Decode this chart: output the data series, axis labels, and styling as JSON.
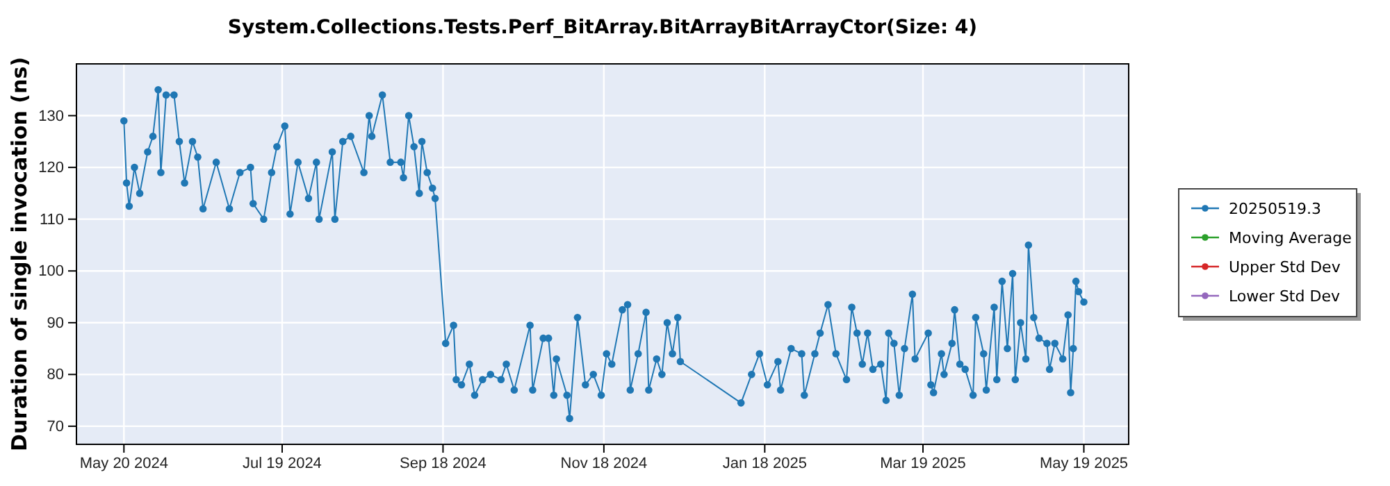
{
  "chart_data": {
    "type": "line",
    "title": "System.Collections.Tests.Perf_BitArray.BitArrayBitArrayCtor(Size: 4)",
    "ylabel": "Duration of single invocation (ns)",
    "xlim": [
      "2024-05-02",
      "2025-06-05"
    ],
    "xticks": [
      {
        "value": "2024-05-20",
        "label": "May 20 2024"
      },
      {
        "value": "2024-07-19",
        "label": "Jul 19 2024"
      },
      {
        "value": "2024-09-18",
        "label": "Sep 18 2024"
      },
      {
        "value": "2024-11-18",
        "label": "Nov 18 2024"
      },
      {
        "value": "2025-01-18",
        "label": "Jan 18 2025"
      },
      {
        "value": "2025-03-19",
        "label": "Mar 19 2025"
      },
      {
        "value": "2025-05-19",
        "label": "May 19 2025"
      }
    ],
    "ylim": [
      66.5,
      140
    ],
    "yticks": [
      70,
      80,
      90,
      100,
      110,
      120,
      130
    ],
    "grid": true,
    "legend": "right",
    "marker": "circle",
    "line_style": "solid",
    "series": [
      {
        "name": "20250519.3",
        "color": "#1f77b4",
        "x": [
          "2024-05-20",
          "2024-05-21",
          "2024-05-22",
          "2024-05-24",
          "2024-05-26",
          "2024-05-29",
          "2024-05-31",
          "2024-06-02",
          "2024-06-03",
          "2024-06-05",
          "2024-06-08",
          "2024-06-10",
          "2024-06-12",
          "2024-06-15",
          "2024-06-17",
          "2024-06-19",
          "2024-06-24",
          "2024-06-29",
          "2024-07-03",
          "2024-07-07",
          "2024-07-08",
          "2024-07-12",
          "2024-07-15",
          "2024-07-17",
          "2024-07-20",
          "2024-07-22",
          "2024-07-25",
          "2024-07-29",
          "2024-08-01",
          "2024-08-02",
          "2024-08-07",
          "2024-08-08",
          "2024-08-11",
          "2024-08-14",
          "2024-08-19",
          "2024-08-21",
          "2024-08-22",
          "2024-08-26",
          "2024-08-29",
          "2024-09-02",
          "2024-09-03",
          "2024-09-05",
          "2024-09-07",
          "2024-09-09",
          "2024-09-10",
          "2024-09-12",
          "2024-09-14",
          "2024-09-15",
          "2024-09-19",
          "2024-09-22",
          "2024-09-23",
          "2024-09-25",
          "2024-09-28",
          "2024-09-30",
          "2024-10-03",
          "2024-10-06",
          "2024-10-10",
          "2024-10-12",
          "2024-10-15",
          "2024-10-21",
          "2024-10-22",
          "2024-10-26",
          "2024-10-28",
          "2024-10-30",
          "2024-10-31",
          "2024-11-04",
          "2024-11-05",
          "2024-11-08",
          "2024-11-11",
          "2024-11-14",
          "2024-11-17",
          "2024-11-19",
          "2024-11-21",
          "2024-11-25",
          "2024-11-27",
          "2024-11-28",
          "2024-12-01",
          "2024-12-04",
          "2024-12-05",
          "2024-12-08",
          "2024-12-10",
          "2024-12-12",
          "2024-12-14",
          "2024-12-16",
          "2024-12-17",
          "2025-01-09",
          "2025-01-13",
          "2025-01-16",
          "2025-01-19",
          "2025-01-23",
          "2025-01-24",
          "2025-01-28",
          "2025-02-01",
          "2025-02-02",
          "2025-02-06",
          "2025-02-08",
          "2025-02-11",
          "2025-02-14",
          "2025-02-18",
          "2025-02-20",
          "2025-02-22",
          "2025-02-24",
          "2025-02-26",
          "2025-02-28",
          "2025-03-03",
          "2025-03-05",
          "2025-03-06",
          "2025-03-08",
          "2025-03-10",
          "2025-03-12",
          "2025-03-15",
          "2025-03-16",
          "2025-03-21",
          "2025-03-22",
          "2025-03-23",
          "2025-03-26",
          "2025-03-27",
          "2025-03-30",
          "2025-03-31",
          "2025-04-02",
          "2025-04-04",
          "2025-04-07",
          "2025-04-08",
          "2025-04-11",
          "2025-04-12",
          "2025-04-15",
          "2025-04-16",
          "2025-04-18",
          "2025-04-20",
          "2025-04-22",
          "2025-04-23",
          "2025-04-25",
          "2025-04-27",
          "2025-04-28",
          "2025-04-30",
          "2025-05-02",
          "2025-05-05",
          "2025-05-06",
          "2025-05-08",
          "2025-05-11",
          "2025-05-13",
          "2025-05-14",
          "2025-05-15",
          "2025-05-16",
          "2025-05-17",
          "2025-05-19"
        ],
        "values": [
          129,
          117,
          112.5,
          120,
          115,
          123,
          126,
          135,
          119,
          134,
          134,
          125,
          117,
          125,
          122,
          112,
          121,
          112,
          119,
          120,
          113,
          110,
          119,
          124,
          128,
          111,
          121,
          114,
          121,
          110,
          123,
          110,
          125,
          126,
          119,
          130,
          126,
          134,
          121,
          121,
          118,
          130,
          124,
          115,
          125,
          119,
          116,
          114,
          86,
          89.5,
          79,
          78,
          82,
          76,
          79,
          80,
          79,
          82,
          77,
          89.5,
          77,
          87,
          87,
          76,
          83,
          76,
          71.5,
          91,
          78,
          80,
          76,
          84,
          82,
          92.5,
          93.5,
          77,
          84,
          92,
          77,
          83,
          80,
          90,
          84,
          91,
          82.5,
          74.5,
          80,
          84,
          78,
          82.5,
          77,
          85,
          84,
          76,
          84,
          88,
          93.5,
          84,
          79,
          93,
          88,
          82,
          88,
          81,
          82,
          75,
          88,
          86,
          76,
          85,
          95.5,
          83,
          88,
          78,
          76.5,
          84,
          80,
          86,
          92.5,
          82,
          81,
          76,
          91,
          84,
          77,
          93,
          79,
          98,
          85,
          99.5,
          79,
          90,
          83,
          105,
          91,
          87,
          86,
          81,
          86,
          83,
          91.5,
          76.5,
          85,
          98,
          96,
          94
        ]
      },
      {
        "name": "Moving Average",
        "color": "#2ca02c"
      },
      {
        "name": "Upper Std Dev",
        "color": "#d62728"
      },
      {
        "name": "Lower Std Dev",
        "color": "#9467bd"
      }
    ]
  }
}
